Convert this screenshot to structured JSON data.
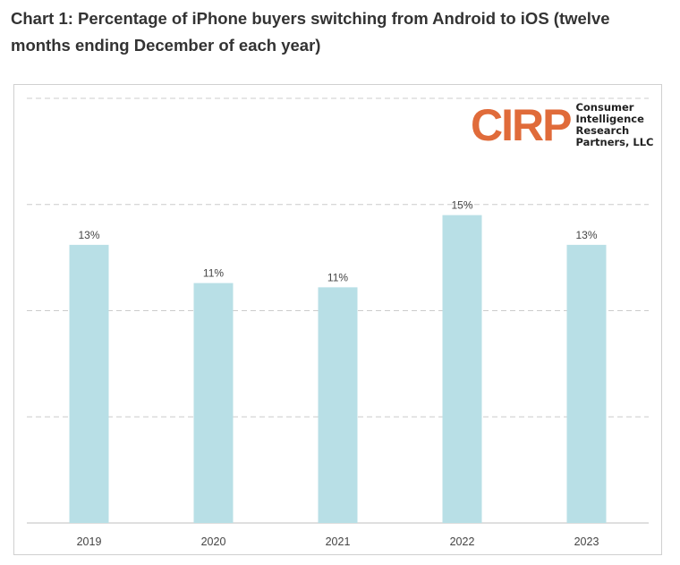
{
  "title": "Chart 1: Percentage of iPhone buyers switching from Android to iOS (twelve months ending December of each year)",
  "logo": {
    "mark": "CIRP",
    "name_lines": [
      "Consumer",
      "Intelligence",
      "Research",
      "Partners, LLC"
    ],
    "color": "#e06b3a"
  },
  "chart_data": {
    "type": "bar",
    "title": "Chart 1: Percentage of iPhone buyers switching from Android to iOS (twelve months ending December of each year)",
    "categories": [
      "2019",
      "2020",
      "2021",
      "2022",
      "2023"
    ],
    "values": [
      13.1,
      11.3,
      11.1,
      14.5,
      13.1
    ],
    "data_labels": [
      "13%",
      "11%",
      "11%",
      "15%",
      "13%"
    ],
    "xlabel": "",
    "ylabel": "",
    "ylim": [
      0,
      20
    ],
    "gridlines": [
      5,
      10,
      15,
      20
    ],
    "grid": true,
    "y_tick_labels_shown": false,
    "bar_color": "#b8dfe6",
    "grid_color": "#cccccc"
  }
}
